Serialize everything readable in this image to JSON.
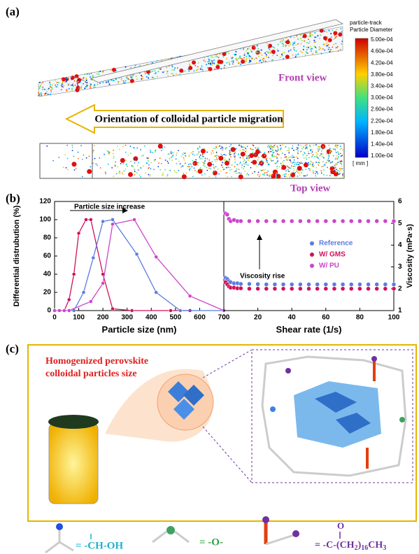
{
  "panel_labels": [
    "(a)",
    "(b)",
    "(c)"
  ],
  "panel_a": {
    "colorbar": {
      "title": [
        "particle-track",
        "Particle Diameter"
      ],
      "unit": "[ mm ]",
      "labels": [
        "5.00e-04",
        "4.60e-04",
        "4.20e-04",
        "3.80e-04",
        "3.40e-04",
        "3.00e-04",
        "2.60e-04",
        "2.20e-04",
        "1.80e-04",
        "1.40e-04",
        "1.00e-04"
      ]
    },
    "front_label": "Front view",
    "top_label": "Top view",
    "arrow_text": "Orientation of colloidal particle migration"
  },
  "chart_data": [
    {
      "type": "line",
      "xlabel": "Particle size (nm)",
      "ylabel": "Differential distrubution (%)",
      "annotation": "Particle size increase",
      "xlim": [
        0,
        700
      ],
      "xticks": [
        0,
        100,
        200,
        300,
        400,
        500,
        600,
        700
      ],
      "ylim": [
        0,
        120
      ],
      "yticks": [
        0,
        20,
        40,
        60,
        80,
        100,
        120
      ],
      "y_axis_side": "left",
      "series": [
        {
          "color": "#d0105a",
          "x": [
            0,
            20,
            40,
            60,
            80,
            100,
            130,
            150,
            200,
            240,
            320,
            480,
            560
          ],
          "values": [
            0,
            0,
            0,
            12,
            40,
            85,
            100,
            100,
            40,
            2,
            0,
            0,
            0
          ]
        },
        {
          "color": "#5b7be0",
          "x": [
            0,
            20,
            40,
            80,
            120,
            160,
            200,
            240,
            340,
            420,
            520,
            700
          ],
          "values": [
            0,
            0,
            0,
            0,
            20,
            58,
            98,
            100,
            62,
            20,
            0,
            0
          ]
        },
        {
          "color": "#cc44cc",
          "x": [
            0,
            20,
            40,
            60,
            150,
            200,
            240,
            330,
            420,
            560,
            700
          ],
          "values": [
            0,
            0,
            0,
            0,
            10,
            30,
            95,
            100,
            59,
            16,
            0
          ]
        }
      ]
    },
    {
      "type": "scatter",
      "xlabel": "Shear rate (1/s)",
      "ylabel": "Viscosity (mPa·s)",
      "annotation": "Viscosity rise",
      "legend": "center right",
      "xlim": [
        0,
        100
      ],
      "xticks": [
        0,
        20,
        40,
        60,
        80,
        100
      ],
      "ylim": [
        1,
        6
      ],
      "yticks": [
        1,
        2,
        3,
        4,
        5,
        6
      ],
      "y_axis_side": "right",
      "x": [
        1,
        2,
        3,
        4,
        6,
        8,
        10,
        15,
        20,
        25,
        30,
        35,
        40,
        45,
        50,
        55,
        60,
        65,
        70,
        75,
        80,
        85,
        90,
        95,
        100
      ],
      "series": [
        {
          "name": "Reference",
          "color": "#5b7be0",
          "values": [
            2.5,
            2.45,
            2.35,
            2.3,
            2.25,
            2.25,
            2.22,
            2.22,
            2.21,
            2.2,
            2.2,
            2.2,
            2.2,
            2.2,
            2.2,
            2.2,
            2.2,
            2.2,
            2.2,
            2.2,
            2.2,
            2.2,
            2.2,
            2.2,
            2.2
          ]
        },
        {
          "name": "W/ GMS",
          "color": "#d0105a",
          "values": [
            2.3,
            2.2,
            2.1,
            2.05,
            2.05,
            2.02,
            2.02,
            2.0,
            2.0,
            2.0,
            2.0,
            2.0,
            2.0,
            2.0,
            2.0,
            2.0,
            2.0,
            2.0,
            2.0,
            2.0,
            2.0,
            2.0,
            2.0,
            2.0,
            2.0
          ]
        },
        {
          "name": "W/ PU",
          "color": "#cc44cc",
          "values": [
            5.45,
            5.4,
            5.2,
            5.1,
            5.15,
            5.1,
            5.1,
            5.1,
            5.1,
            5.1,
            5.1,
            5.1,
            5.1,
            5.1,
            5.1,
            5.1,
            5.1,
            5.1,
            5.1,
            5.1,
            5.1,
            5.1,
            5.1,
            5.1,
            5.1
          ]
        }
      ]
    }
  ],
  "panel_c": {
    "heading": [
      "Homogenized perovskite",
      "colloidal particles size"
    ],
    "formulas": [
      "= -CH-OH",
      "= -O-"
    ],
    "formula3": {
      "above": "O",
      "parts": [
        "= -C-(CH",
        "2",
        ")",
        "16",
        "CH",
        "3"
      ]
    }
  }
}
